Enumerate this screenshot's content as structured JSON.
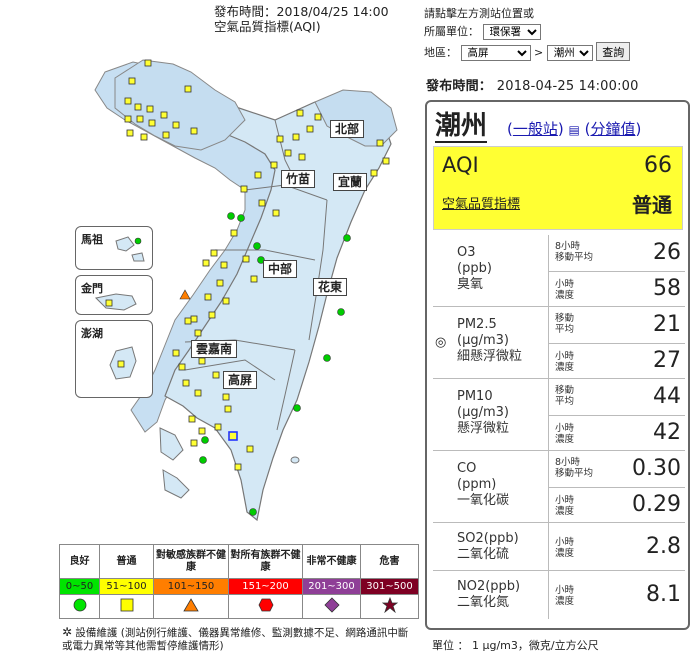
{
  "map_header": {
    "publish_line": "發布時間：2018/04/25 14:00",
    "subtitle": "空氣品質指標(AQI)"
  },
  "map": {
    "regions": [
      "北部",
      "竹苗",
      "宜蘭",
      "中部",
      "花東",
      "雲嘉南",
      "高屏"
    ],
    "insets": [
      "馬祖",
      "金門",
      "澎湖"
    ]
  },
  "legend": {
    "headers": [
      "良好",
      "普通",
      "對敏感族群不健康",
      "對所有族群不健康",
      "非常不健康",
      "危害"
    ],
    "ranges": [
      "0~50",
      "51~100",
      "101~150",
      "151~200",
      "201~300",
      "301~500"
    ],
    "colors": [
      "#00e400",
      "#ffff00",
      "#ff7e00",
      "#ff0000",
      "#8f3f97",
      "#7e0023"
    ],
    "symbols": [
      "circle",
      "square",
      "triangle",
      "hexagon",
      "diamond",
      "star"
    ],
    "footnote": "設備維護 (測站例行維護、儀器異常維修、監測數據不足、網路通訊中斷或電力異常等其他需暫停維護情形)"
  },
  "controls": {
    "hint": "請點擊左方測站位置或",
    "unit_label": "所屬單位：",
    "unit_value": "環保署",
    "area_label": "地區：",
    "area_value": "高屏",
    "station_value": "潮州",
    "query_button": "查詢"
  },
  "publish": {
    "label": "發布時間：",
    "value": "2018-04-25 14:00:00"
  },
  "station": {
    "name": "潮州",
    "link_general": "一般站",
    "link_minute": "分鐘值",
    "aqi_label": "AQI",
    "aqi_value": "66",
    "aqi_sub": "空氣品質指標",
    "aqi_status": "普通"
  },
  "pollutants": [
    {
      "name": "O3",
      "unit": "(ppb)",
      "cname": "臭氧",
      "rows": [
        {
          "avg1": "8小時",
          "avg2": "移動平均",
          "value": "26"
        },
        {
          "avg1": "小時",
          "avg2": "濃度",
          "value": "58"
        }
      ]
    },
    {
      "name": "PM2.5",
      "unit": "(μg/m3)",
      "cname": "細懸浮微粒",
      "rows": [
        {
          "avg1": "移動",
          "avg2": "平均",
          "value": "21"
        },
        {
          "avg1": "小時",
          "avg2": "濃度",
          "value": "27"
        }
      ]
    },
    {
      "name": "PM10",
      "unit": "(μg/m3)",
      "cname": "懸浮微粒",
      "rows": [
        {
          "avg1": "移動",
          "avg2": "平均",
          "value": "44"
        },
        {
          "avg1": "小時",
          "avg2": "濃度",
          "value": "42"
        }
      ]
    },
    {
      "name": "CO",
      "unit": "(ppm)",
      "cname": "一氧化碳",
      "rows": [
        {
          "avg1": "8小時",
          "avg2": "移動平均",
          "value": "0.30"
        },
        {
          "avg1": "小時",
          "avg2": "濃度",
          "value": "0.29"
        }
      ]
    },
    {
      "name": "SO2(ppb)",
      "unit": "",
      "cname": "二氧化硫",
      "rows": [
        {
          "avg1": "小時",
          "avg2": "濃度",
          "value": "2.8"
        }
      ]
    },
    {
      "name": "NO2(ppb)",
      "unit": "",
      "cname": "二氧化氮",
      "rows": [
        {
          "avg1": "小時",
          "avg2": "濃度",
          "value": "8.1"
        }
      ]
    }
  ],
  "unit_note": "單位 ： 1 μg/m3，微克/立方公尺"
}
